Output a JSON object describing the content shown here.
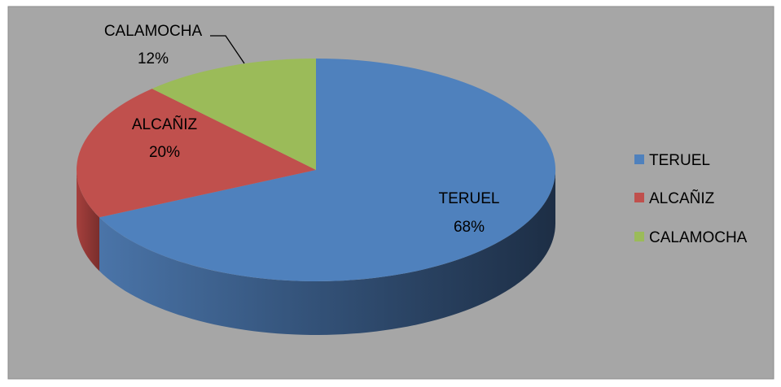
{
  "chart_data": {
    "type": "pie",
    "style": "3d",
    "categories": [
      "TERUEL",
      "ALCAÑIZ",
      "CALAMOCHA"
    ],
    "values": [
      68,
      20,
      12
    ],
    "value_labels": [
      "68%",
      "20%",
      "12%"
    ],
    "colors": [
      "#4f81bd",
      "#c0504d",
      "#9bbb59"
    ],
    "legend": {
      "position": "right",
      "entries": [
        "TERUEL",
        "ALCAÑIZ",
        "CALAMOCHA"
      ]
    },
    "background_color": "#a6a6a6",
    "grid": false
  }
}
